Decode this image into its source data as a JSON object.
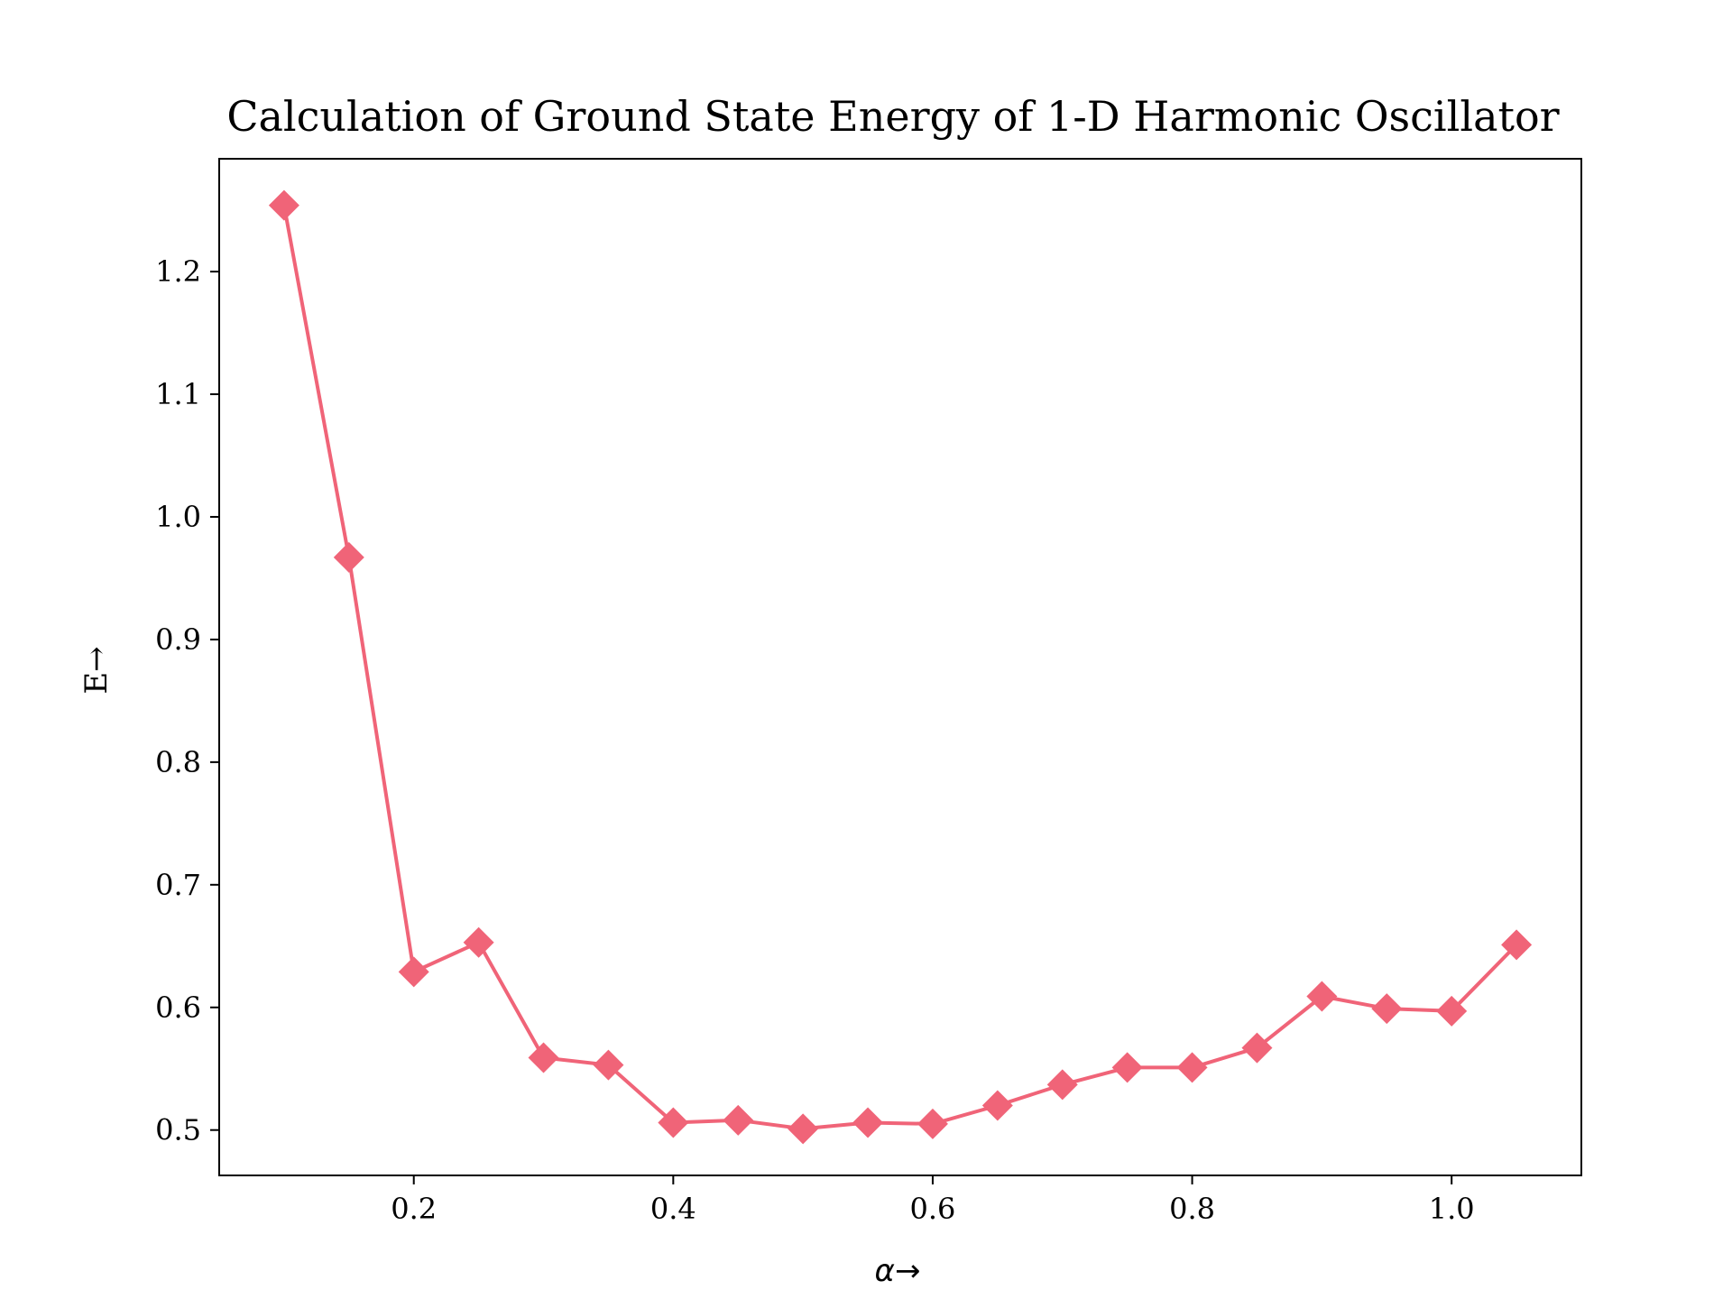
{
  "chart_data": {
    "type": "line",
    "title": "Calculation of Ground State Energy of 1-D Harmonic Oscillator",
    "xlabel": "α→",
    "ylabel": "E→",
    "xlim": [
      0.05,
      1.1
    ],
    "ylim": [
      0.463,
      1.292
    ],
    "xticks": [
      0.2,
      0.4,
      0.6,
      0.8,
      1.0
    ],
    "xtick_labels": [
      "0.2",
      "0.4",
      "0.6",
      "0.8",
      "1.0"
    ],
    "yticks": [
      0.5,
      0.6,
      0.7,
      0.8,
      0.9,
      1.0,
      1.1,
      1.2
    ],
    "ytick_labels": [
      "0.5",
      "0.6",
      "0.7",
      "0.8",
      "0.9",
      "1.0",
      "1.1",
      "1.2"
    ],
    "grid": false,
    "series": [
      {
        "color": "#f06478",
        "marker": "diamond",
        "x": [
          0.1,
          0.15,
          0.2,
          0.25,
          0.3,
          0.35,
          0.4,
          0.45,
          0.5,
          0.55,
          0.6,
          0.65,
          0.7,
          0.75,
          0.8,
          0.85,
          0.9,
          0.95,
          1.0,
          1.05
        ],
        "y": [
          1.254,
          0.967,
          0.629,
          0.653,
          0.559,
          0.553,
          0.506,
          0.508,
          0.501,
          0.506,
          0.505,
          0.52,
          0.537,
          0.551,
          0.551,
          0.567,
          0.609,
          0.599,
          0.597,
          0.651
        ]
      }
    ]
  }
}
